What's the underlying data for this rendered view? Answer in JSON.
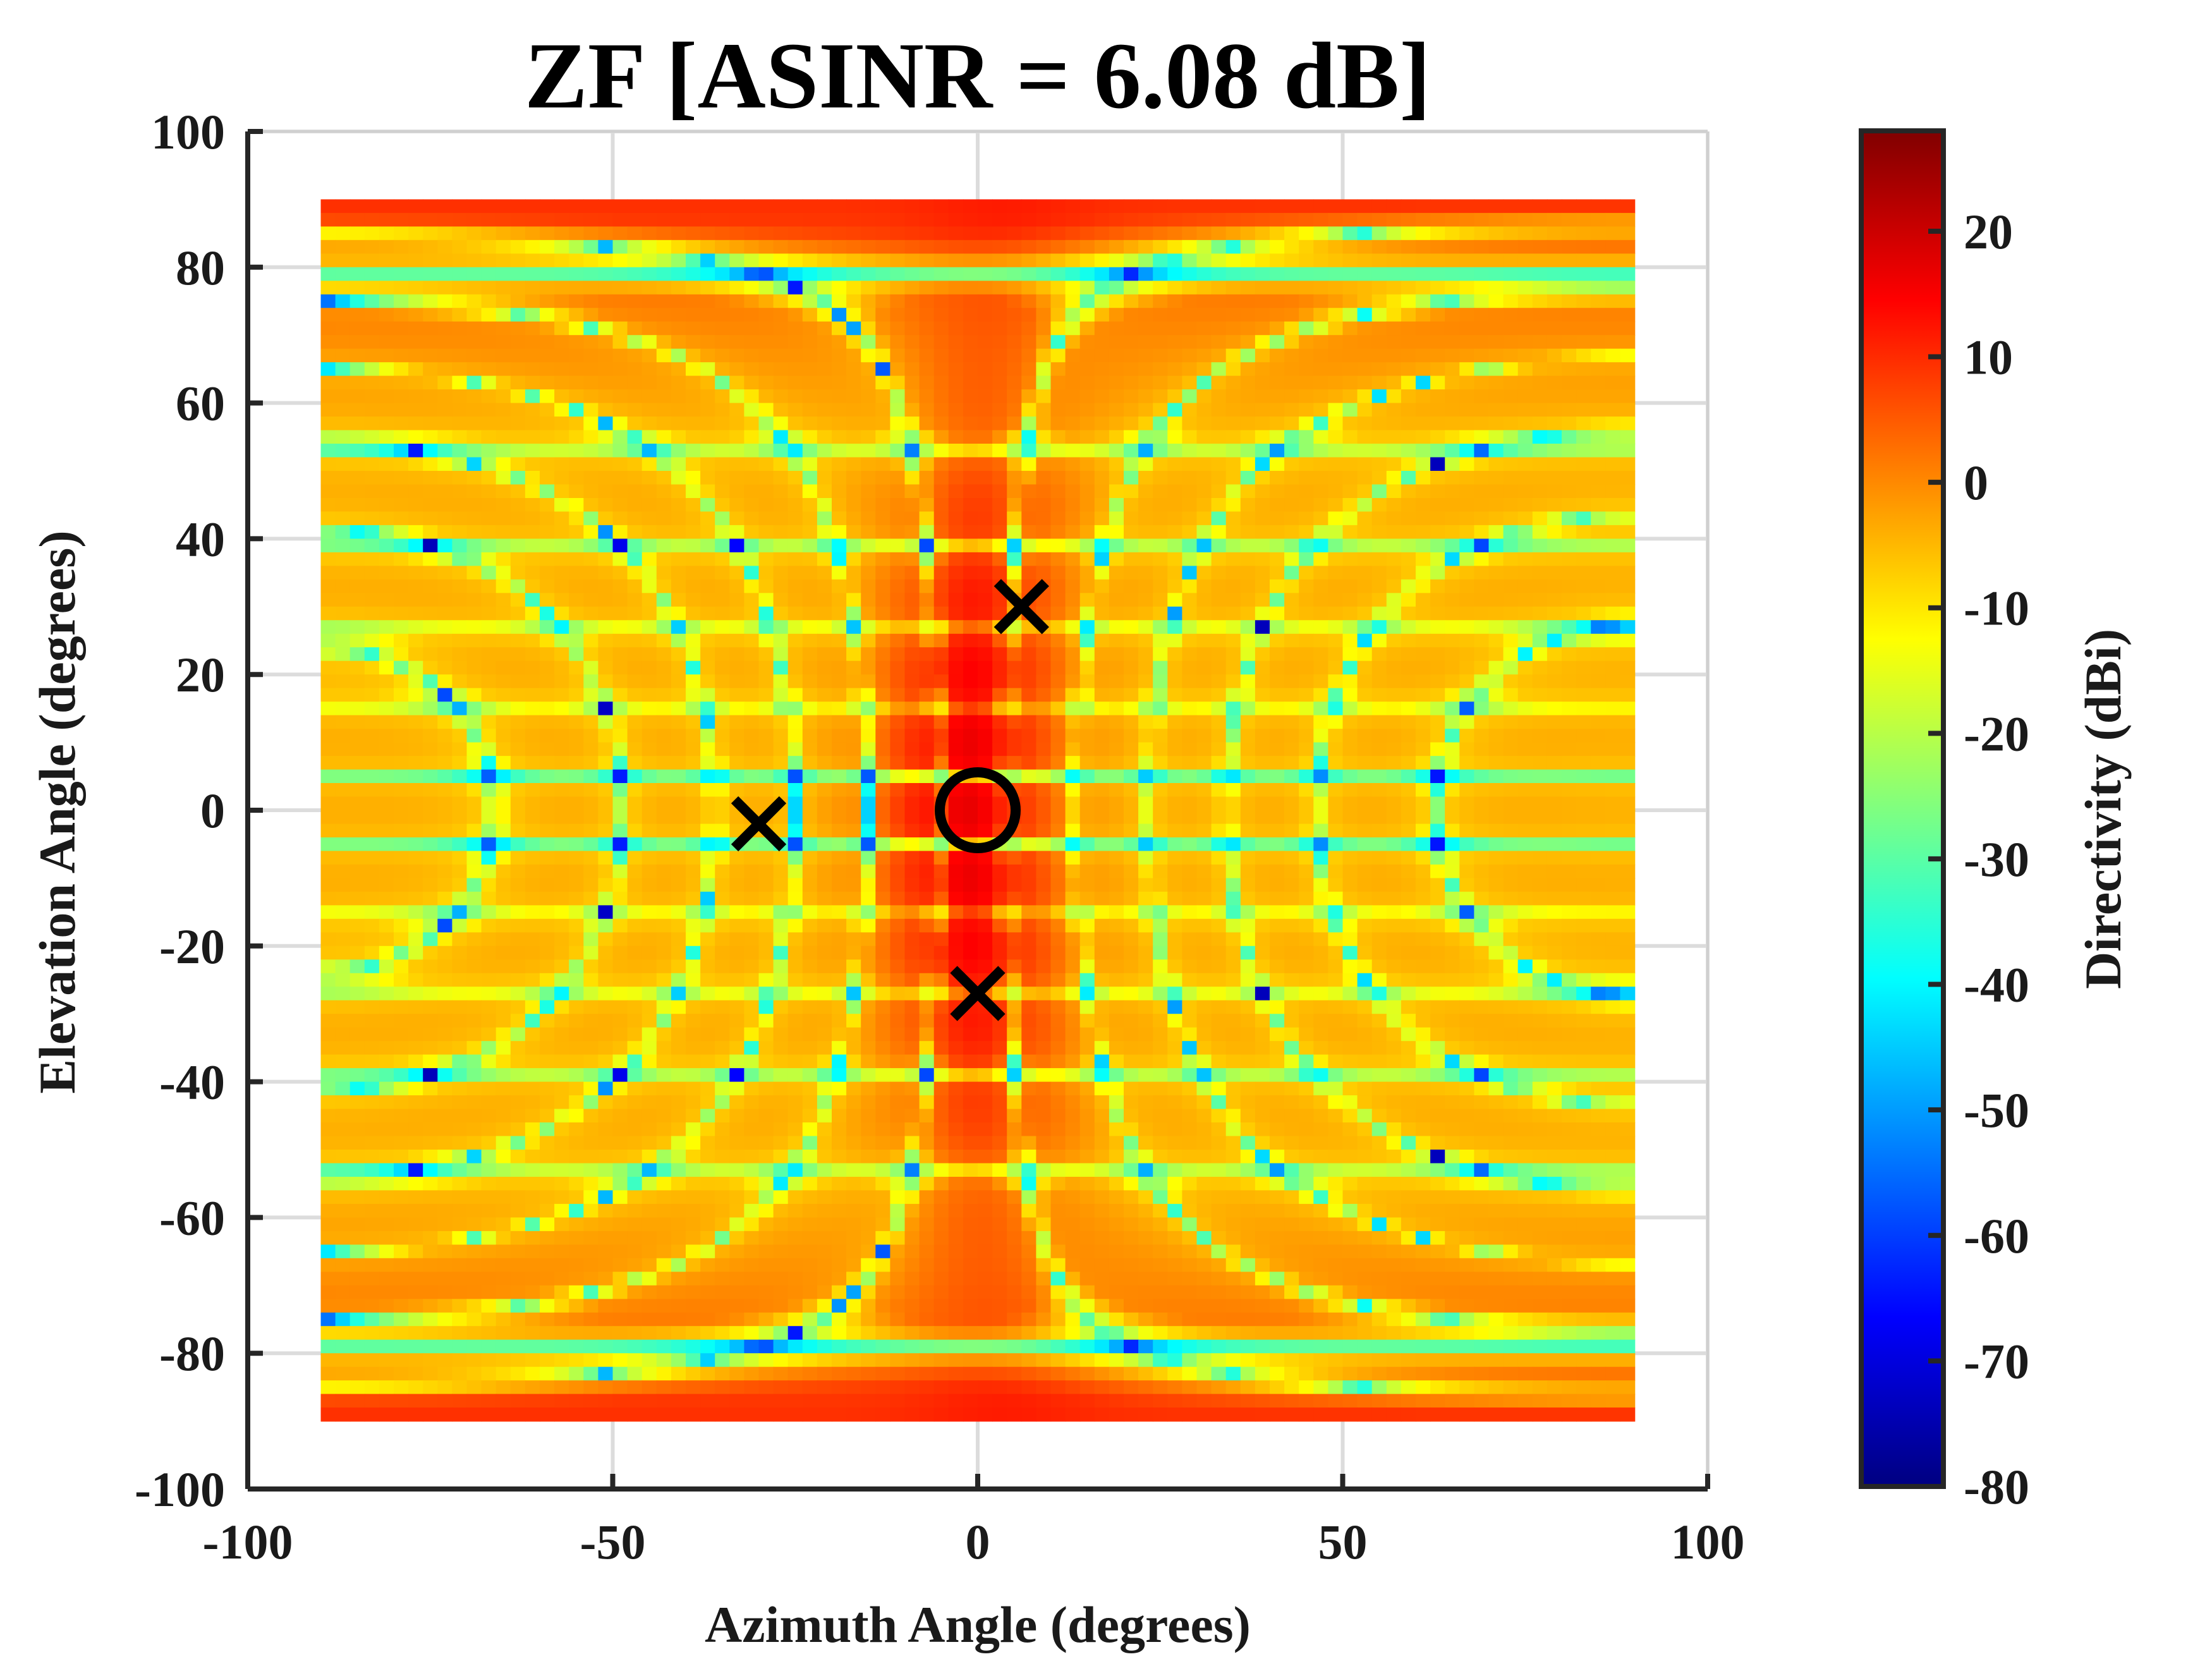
{
  "chart_data": {
    "type": "heatmap",
    "title": "ZF [ASINR = 6.08 dB]",
    "xlabel": "Azimuth Angle (degrees)",
    "ylabel": "Elevation Angle (degrees)",
    "xlim": [
      -100,
      100
    ],
    "ylim": [
      -100,
      100
    ],
    "xticks": [
      -100,
      -50,
      0,
      50,
      100
    ],
    "yticks": [
      -100,
      -80,
      -60,
      -40,
      -20,
      0,
      20,
      40,
      60,
      80,
      100
    ],
    "grid": true,
    "data_extent": {
      "azimuth": [
        -90,
        90
      ],
      "elevation": [
        -90,
        90
      ]
    },
    "colormap": "jet",
    "colorbar": {
      "label": "Directivity (dBi)",
      "range": [
        -80,
        28
      ],
      "ticks": [
        -80,
        -70,
        -60,
        -50,
        -40,
        -30,
        -20,
        -10,
        0,
        10,
        20
      ]
    },
    "markers": [
      {
        "name": "desired user",
        "symbol": "circle",
        "azimuth": 0,
        "elevation": 0
      },
      {
        "name": "interferer 1",
        "symbol": "cross",
        "azimuth": 6,
        "elevation": 30
      },
      {
        "name": "interferer 2",
        "symbol": "cross",
        "azimuth": -30,
        "elevation": -2
      },
      {
        "name": "interferer 3",
        "symbol": "cross",
        "azimuth": 0,
        "elevation": -27
      }
    ],
    "notable_regions": [
      {
        "description": "main lobe",
        "azimuth": [
          -13,
          10
        ],
        "elevation": [
          -50,
          50
        ],
        "level_dBi": 20
      },
      {
        "description": "bands near elevation ±75..90",
        "level_dBi": 15
      },
      {
        "description": "side-lobe cells",
        "level_dBi": -8
      },
      {
        "description": "null contours",
        "level_dBi": -42
      }
    ]
  }
}
